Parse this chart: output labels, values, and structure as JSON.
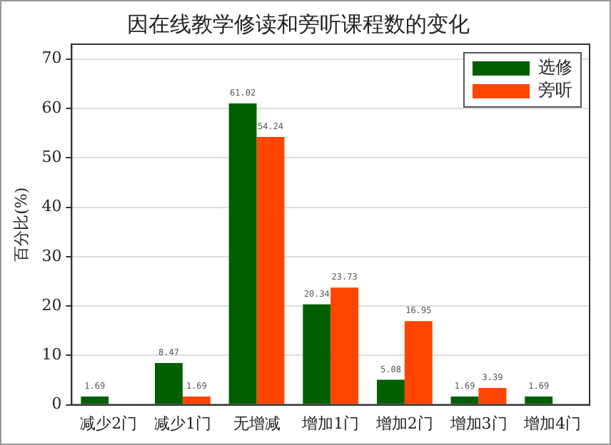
{
  "chart_data": {
    "type": "bar",
    "title": "因在线教学修读和旁听课程数的变化",
    "ylabel": "百分比(%)",
    "categories": [
      "减少2门",
      "减少1门",
      "无增减",
      "增加1门",
      "增加2门",
      "增加3门",
      "增加4门"
    ],
    "series": [
      {
        "name": "选修",
        "color": "#006000",
        "values": [
          1.69,
          8.47,
          61.02,
          20.34,
          5.08,
          1.69,
          1.69
        ],
        "value_labels": [
          "1.69",
          "8.47",
          "61.02",
          "20.34",
          "5.08",
          "1.69",
          "1.69"
        ]
      },
      {
        "name": "旁听",
        "color": "#ff4500",
        "values": [
          0,
          1.69,
          54.24,
          23.73,
          16.95,
          3.39,
          0
        ],
        "value_labels": [
          null,
          "1.69",
          "54.24",
          "23.73",
          "16.95",
          "3.39",
          null
        ]
      }
    ],
    "ylim": [
      0,
      73
    ],
    "yticks": [
      0,
      10,
      20,
      30,
      40,
      50,
      60,
      70
    ],
    "grid": "y",
    "legend": "top right"
  }
}
